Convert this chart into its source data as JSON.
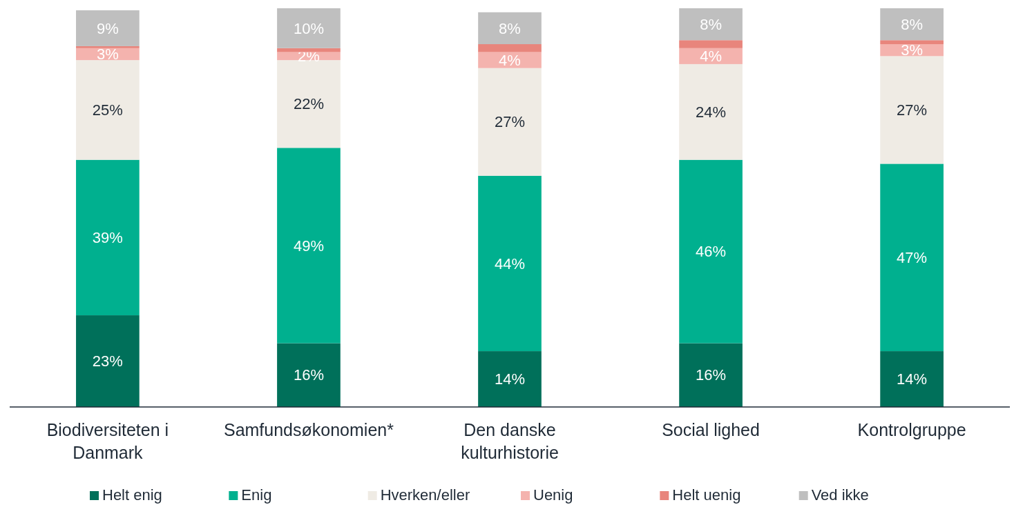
{
  "chart_data": {
    "type": "bar",
    "stacked": true,
    "categories": [
      "Biodiversiteten i Danmark",
      "Samfundsøkonomien*",
      "Den danske kulturhistorie",
      "Social lighed",
      "Kontrolgruppe"
    ],
    "series": [
      {
        "name": "Helt enig",
        "color": "#00705a",
        "values": [
          23,
          16,
          14,
          16,
          14
        ],
        "value_labels": [
          "23%",
          "16%",
          "14%",
          "16%",
          "14%"
        ]
      },
      {
        "name": "Enig",
        "color": "#00b08f",
        "values": [
          39,
          49,
          44,
          46,
          47
        ],
        "value_labels": [
          "39%",
          "49%",
          "44%",
          "46%",
          "47%"
        ]
      },
      {
        "name": "Hverken/eller",
        "color": "#efebe4",
        "values": [
          25,
          22,
          27,
          24,
          27
        ],
        "value_labels": [
          "25%",
          "22%",
          "27%",
          "24%",
          "27%"
        ]
      },
      {
        "name": "Uenig",
        "color": "#f4b3ae",
        "values": [
          3,
          2,
          4,
          4,
          3
        ],
        "value_labels": [
          "3%",
          "2%",
          "4%",
          "4%",
          "3%"
        ]
      },
      {
        "name": "Helt uenig",
        "color": "#e8857c",
        "values": [
          0.5,
          1,
          2,
          2,
          1
        ],
        "value_labels": [
          null,
          null,
          null,
          null,
          null
        ]
      },
      {
        "name": "Ved ikke",
        "color": "#bfbfbf",
        "values": [
          9,
          10,
          8,
          8,
          8
        ],
        "value_labels": [
          "9%",
          "10%",
          "8%",
          "8%",
          "8%"
        ]
      }
    ],
    "tick_labels": "x",
    "legend": "bottom"
  }
}
